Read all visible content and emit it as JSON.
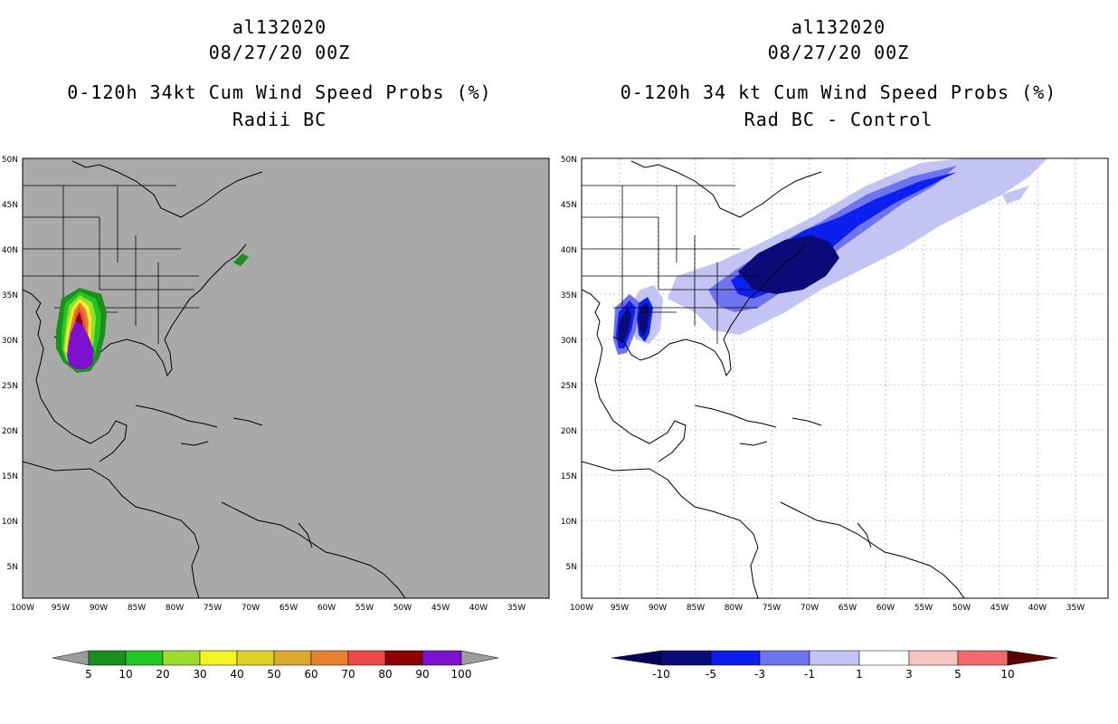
{
  "left": {
    "storm_id": "al132020",
    "datetime": "08/27/20 00Z",
    "title": "0-120h 34kt Cum Wind Speed Probs (%)",
    "subtitle": "Radii BC",
    "colors": {
      "ocean": "#a9a9a9"
    },
    "colorbar": {
      "labels": [
        "5",
        "10",
        "20",
        "30",
        "40",
        "50",
        "60",
        "70",
        "80",
        "90",
        "100"
      ],
      "colors": [
        "#1b8f1b",
        "#22c622",
        "#9bdc2e",
        "#f3f322",
        "#dfcf26",
        "#dca72e",
        "#e7802c",
        "#ee4848",
        "#8c0000",
        "#7d11cf"
      ],
      "end_color": "#9c9c9c"
    }
  },
  "right": {
    "storm_id": "al132020",
    "datetime": "08/27/20 00Z",
    "title": "0-120h 34 kt Cum Wind Speed Probs (%)",
    "subtitle": "Rad BC - Control",
    "colorbar": {
      "labels": [
        "-10",
        "-5",
        "-3",
        "-1",
        "1",
        "3",
        "5",
        "10"
      ],
      "colors": [
        "#0a0a78",
        "#0b1fee",
        "#6f74ee",
        "#c3c3f4",
        "#ffffff",
        "#f7c4c4",
        "#f06868",
        "#ee0a0a"
      ],
      "end_low": "#00005a",
      "end_high": "#5a0000"
    }
  },
  "axes": {
    "lat_labels": [
      "50N",
      "45N",
      "40N",
      "35N",
      "30N",
      "25N",
      "20N",
      "15N",
      "10N",
      "5N"
    ],
    "lon_labels": [
      "100W",
      "95W",
      "90W",
      "85W",
      "80W",
      "75W",
      "70W",
      "65W",
      "60W",
      "55W",
      "50W",
      "45W",
      "40W",
      "35W"
    ]
  }
}
